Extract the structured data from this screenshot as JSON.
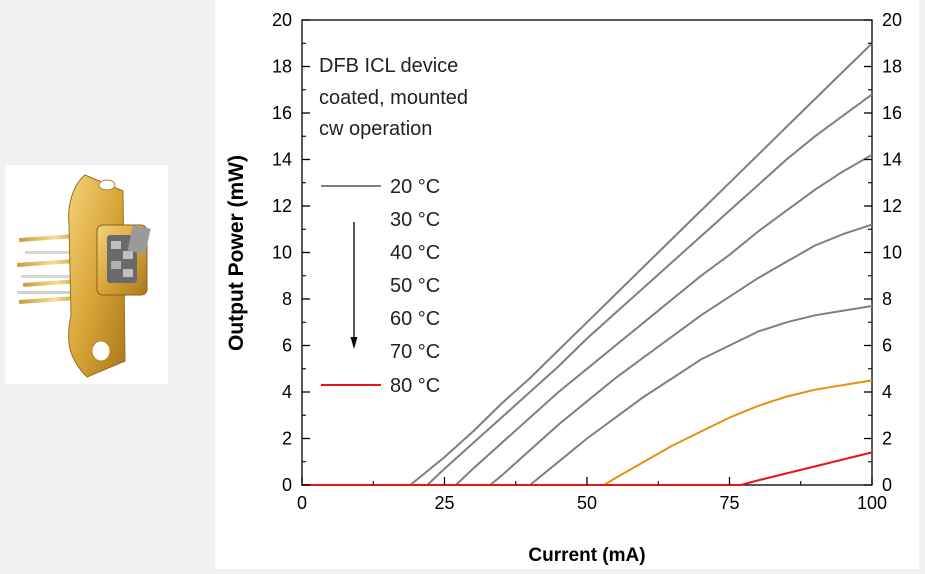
{
  "figure": {
    "photo_alt": "packaged DFB ICL laser device",
    "colors": {
      "background": "#f1f1f1",
      "plot_background": "#ffffff",
      "gray": "#7f7f7f",
      "orange": "#e8900c",
      "red": "#e8141b"
    }
  },
  "chart_data": {
    "type": "line",
    "title": "",
    "xlabel": "Current (mA)",
    "ylabel": "Output Power (mW)",
    "xlim": [
      0,
      100
    ],
    "ylim": [
      0,
      20
    ],
    "x_ticks": [
      0,
      25,
      50,
      75,
      100
    ],
    "y_ticks": [
      0,
      2,
      4,
      6,
      8,
      10,
      12,
      14,
      16,
      18,
      20
    ],
    "x_tick_labels": [
      "0",
      "25",
      "50",
      "75",
      "100"
    ],
    "y_tick_labels": [
      "0",
      "2",
      "4",
      "6",
      "8",
      "10",
      "12",
      "14",
      "16",
      "18",
      "20"
    ],
    "right_y_tick_labels": [
      "0",
      "2",
      "4",
      "6",
      "8",
      "10",
      "12",
      "14",
      "16",
      "18",
      "20"
    ],
    "grid": false,
    "annotation": [
      "DFB ICL device",
      "coated, mounted",
      "cw operation"
    ],
    "legend_placement": "upper-left",
    "series": [
      {
        "name": "20 °C",
        "color": "#7f7f7f",
        "x": [
          0,
          19,
          25,
          30,
          35,
          40,
          45,
          50,
          55,
          60,
          65,
          70,
          75,
          80,
          85,
          90,
          95,
          100
        ],
        "y": [
          0,
          0,
          1.2,
          2.3,
          3.5,
          4.6,
          5.8,
          7.0,
          8.2,
          9.4,
          10.6,
          11.8,
          13.0,
          14.2,
          15.4,
          16.6,
          17.8,
          19.0
        ]
      },
      {
        "name": "30 °C",
        "color": "#7f7f7f",
        "x": [
          0,
          22,
          25,
          30,
          35,
          40,
          45,
          50,
          55,
          60,
          65,
          70,
          75,
          80,
          85,
          90,
          95,
          100
        ],
        "y": [
          0,
          0,
          0.7,
          1.8,
          2.9,
          4.0,
          5.1,
          6.3,
          7.4,
          8.5,
          9.6,
          10.7,
          11.8,
          12.9,
          14.0,
          15.0,
          15.9,
          16.8
        ]
      },
      {
        "name": "40 °C",
        "color": "#7f7f7f",
        "x": [
          0,
          27,
          30,
          35,
          40,
          45,
          50,
          55,
          60,
          65,
          70,
          75,
          80,
          85,
          90,
          95,
          100
        ],
        "y": [
          0,
          0,
          0.7,
          1.8,
          2.9,
          4.0,
          5.0,
          6.0,
          7.0,
          8.0,
          9.0,
          9.9,
          10.9,
          11.8,
          12.7,
          13.5,
          14.2
        ]
      },
      {
        "name": "50 °C",
        "color": "#7f7f7f",
        "x": [
          0,
          33,
          35,
          40,
          45,
          50,
          55,
          60,
          65,
          70,
          75,
          80,
          85,
          90,
          95,
          100
        ],
        "y": [
          0,
          0,
          0.4,
          1.5,
          2.6,
          3.6,
          4.6,
          5.5,
          6.4,
          7.3,
          8.1,
          8.9,
          9.6,
          10.3,
          10.8,
          11.2
        ]
      },
      {
        "name": "60 °C",
        "color": "#7f7f7f",
        "x": [
          0,
          40,
          45,
          50,
          55,
          60,
          65,
          70,
          75,
          80,
          85,
          90,
          95,
          100
        ],
        "y": [
          0,
          0,
          1.0,
          2.0,
          2.9,
          3.8,
          4.6,
          5.4,
          6.0,
          6.6,
          7.0,
          7.3,
          7.5,
          7.7
        ]
      },
      {
        "name": "70 °C",
        "color": "#e8900c",
        "x": [
          0,
          53,
          55,
          60,
          65,
          70,
          75,
          80,
          85,
          90,
          95,
          100
        ],
        "y": [
          0,
          0,
          0.3,
          1.0,
          1.7,
          2.3,
          2.9,
          3.4,
          3.8,
          4.1,
          4.3,
          4.5
        ]
      },
      {
        "name": "80 °C",
        "color": "#e8141b",
        "x": [
          0,
          77,
          80,
          85,
          90,
          95,
          100
        ],
        "y": [
          0,
          0,
          0.2,
          0.5,
          0.8,
          1.1,
          1.4
        ]
      }
    ]
  }
}
